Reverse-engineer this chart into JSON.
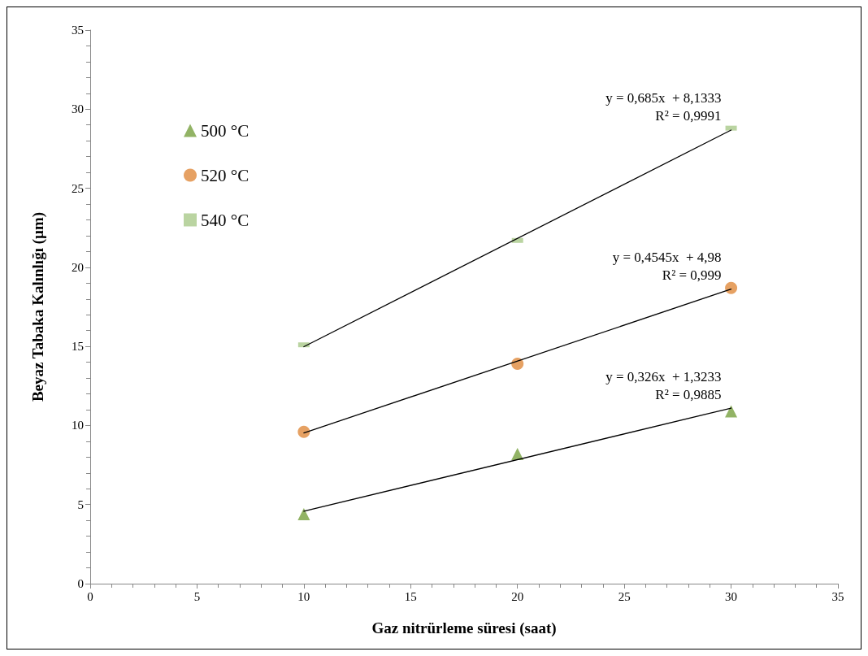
{
  "chart_data": {
    "type": "scatter",
    "xlabel": "Gaz nitrürleme süresi (saat)",
    "ylabel": "Beyaz Tabaka Kalınlığı (µm)",
    "xlim": [
      0,
      35
    ],
    "xticks": [
      0,
      5,
      10,
      15,
      20,
      25,
      30,
      35
    ],
    "ylim": [
      0,
      35
    ],
    "yticks": [
      0,
      5,
      10,
      15,
      20,
      25,
      30,
      35
    ],
    "grid": false,
    "legend": "top left",
    "series": [
      {
        "name": "500 °C",
        "marker": "triangle",
        "color": "#77a03f",
        "x": [
          10,
          20,
          30
        ],
        "values": [
          4.4,
          8.2,
          10.9
        ]
      },
      {
        "name": "520 °C",
        "marker": "circle",
        "color": "#e08a3c",
        "x": [
          10,
          20,
          30
        ],
        "values": [
          9.6,
          13.9,
          18.7
        ]
      },
      {
        "name": "540 °C",
        "marker": "square",
        "color": "#a9c98a",
        "x": [
          10,
          20,
          30
        ],
        "values": [
          15.1,
          21.7,
          28.8
        ]
      },
      {
        "type": "line",
        "marker": "none",
        "line_style": "solid",
        "color": "#000000",
        "x": [
          10,
          30
        ],
        "values": [
          4.58,
          11.1
        ]
      },
      {
        "type": "line",
        "marker": "none",
        "line_style": "solid",
        "color": "#000000",
        "x": [
          10,
          30
        ],
        "values": [
          9.53,
          18.62
        ]
      },
      {
        "type": "line",
        "marker": "none",
        "line_style": "solid",
        "color": "#000000",
        "x": [
          10,
          30
        ],
        "values": [
          14.98,
          28.68
        ]
      }
    ],
    "annotations": [
      "y = 0,685x  + 8,1333\nR² = 0,9991",
      "y = 0,4545x  + 4,98\nR² = 0,999",
      "y = 0,326x  + 1,3233\nR² = 0,9885"
    ]
  }
}
